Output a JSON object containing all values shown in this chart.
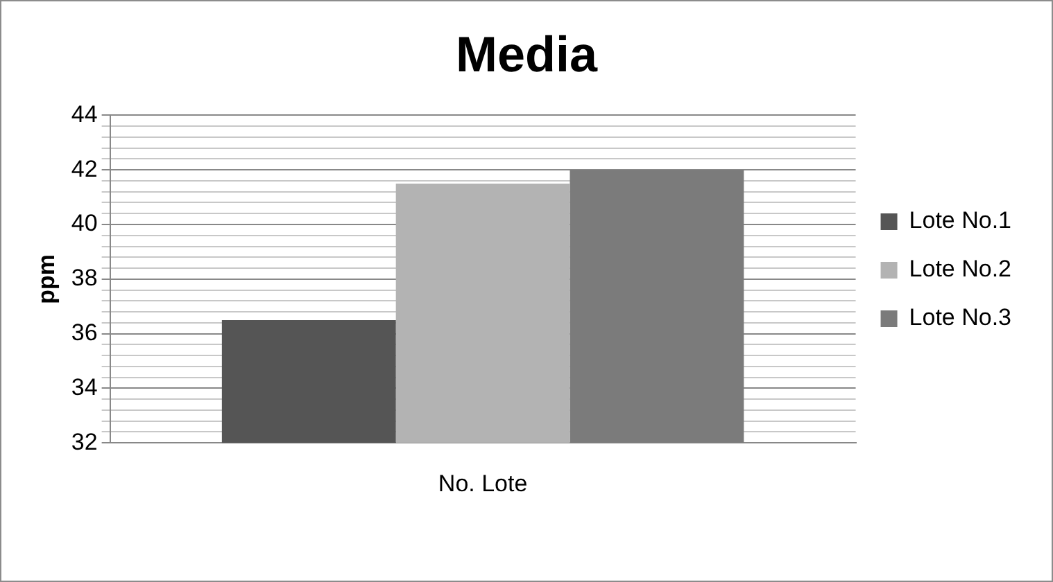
{
  "chart_data": {
    "type": "bar",
    "title": "Media",
    "ylabel": "ppm",
    "categories": [
      "No. Lote"
    ],
    "series": [
      {
        "name": "Lote No.1",
        "color": "#555555",
        "values": [
          36.5
        ]
      },
      {
        "name": "Lote No.2",
        "color": "#b3b3b3",
        "values": [
          41.5
        ]
      },
      {
        "name": "Lote No.3",
        "color": "#7b7b7b",
        "values": [
          42
        ]
      }
    ],
    "ylim": [
      32,
      44
    ],
    "yticks": [
      32,
      {
        "value": 32.4,
        "label": null
      },
      {
        "value": 32.8,
        "label": null
      },
      {
        "value": 33.2,
        "label": null
      },
      {
        "value": 33.6,
        "label": null
      },
      34,
      {
        "value": 34.4,
        "label": null
      },
      {
        "value": 34.8,
        "label": null
      },
      {
        "value": 35.2,
        "label": null
      },
      {
        "value": 35.6,
        "label": null
      },
      36,
      {
        "value": 36.4,
        "label": null
      },
      {
        "value": 36.8,
        "label": null
      },
      {
        "value": 37.2,
        "label": null
      },
      {
        "value": 37.6,
        "label": null
      },
      38,
      {
        "value": 38.4,
        "label": null
      },
      {
        "value": 38.8,
        "label": null
      },
      {
        "value": 39.2,
        "label": null
      },
      {
        "value": 39.6,
        "label": null
      },
      40,
      {
        "value": 40.4,
        "label": null
      },
      {
        "value": 40.8,
        "label": null
      },
      {
        "value": 41.2,
        "label": null
      },
      {
        "value": 41.6,
        "label": null
      },
      42,
      {
        "value": 42.4,
        "label": null
      },
      {
        "value": 42.8,
        "label": null
      },
      {
        "value": 43.2,
        "label": null
      },
      {
        "value": 43.6,
        "label": null
      },
      44
    ],
    "grid": "y",
    "legend": "right"
  }
}
